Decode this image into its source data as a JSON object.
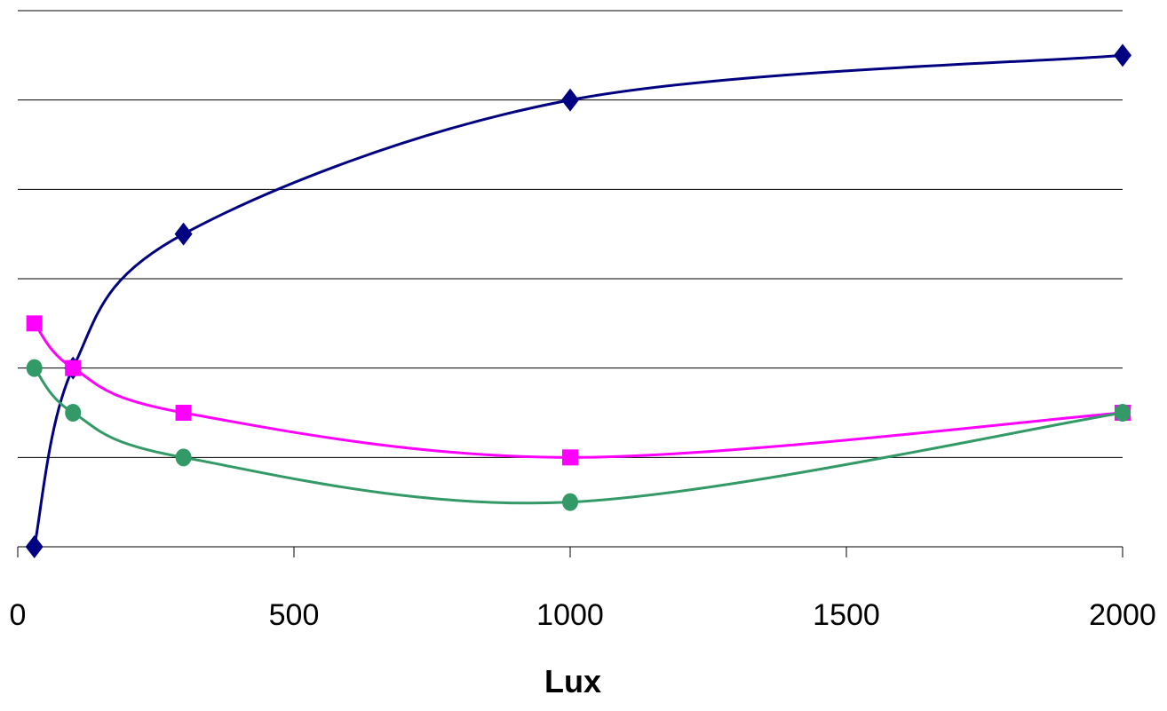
{
  "chart_data": {
    "type": "line",
    "xlabel": "Lux",
    "ylabel": "",
    "xlim": [
      0,
      2000
    ],
    "ylim": [
      0,
      6
    ],
    "x_ticks": [
      "0",
      "500",
      "1000",
      "1500",
      "2000"
    ],
    "grid": true,
    "smooth": true,
    "x": [
      30,
      100,
      300,
      1000,
      2000
    ],
    "series": [
      {
        "color": "#000080",
        "marker": "diamond",
        "values": [
          0,
          2,
          3.5,
          5,
          5.5
        ]
      },
      {
        "color": "#ff00ff",
        "marker": "square",
        "values": [
          2.5,
          2,
          1.5,
          1,
          1.5
        ]
      },
      {
        "color": "#339966",
        "marker": "circle",
        "values": [
          2,
          1.5,
          1,
          0.5,
          1.5
        ]
      }
    ]
  }
}
